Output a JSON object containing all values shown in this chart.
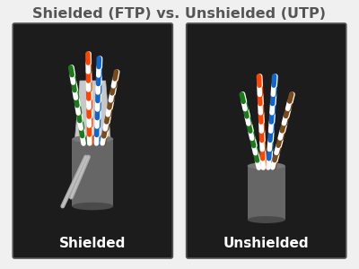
{
  "title": "Shielded (FTP) vs. Unshielded (UTP)",
  "title_color": "#555555",
  "title_fontsize": 11.5,
  "bg_color": "#f0f0f0",
  "panel_bg": "#1c1c1c",
  "panel_border": "#555555",
  "label_left": "Shielded",
  "label_right": "Unshielded",
  "label_color": "#ffffff",
  "label_fontsize": 11,
  "jacket_color": "#666666",
  "jacket_top_color": "#777777",
  "shield_color": "#c8c8c8",
  "drain_color": "#999999",
  "pair_colors": [
    [
      "#1a7a1a",
      "#ffffff"
    ],
    [
      "#ff4400",
      "#ffffff"
    ],
    [
      "#1166cc",
      "#ffffff"
    ],
    [
      "#7a4a1a",
      "#ffffff"
    ]
  ]
}
